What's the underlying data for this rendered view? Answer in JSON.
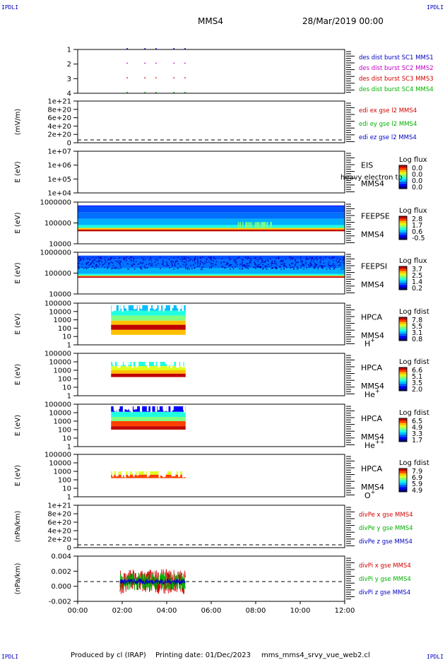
{
  "corner_labels": [
    "IPDLI",
    "IPDLI",
    "IPDLI",
    "IPDLI"
  ],
  "header": {
    "spacecraft": "MMS4",
    "date_time": "28/Mar/2019 00:00"
  },
  "footer": {
    "producer": "Produced by cl (IRAP)",
    "printing_date": "Printing date: 01/Dec/2023",
    "filename": "mms_mms4_srvy_vue_web2.cl"
  },
  "colors": {
    "red": "#d00000",
    "green": "#00b000",
    "blue": "#0000c0",
    "magenta": "#c000c0",
    "black": "#000000"
  },
  "chart_data": [
    {
      "type": "scatter",
      "name": "burst",
      "y_ticks": [
        "1",
        "2",
        "3",
        "4"
      ],
      "series": [
        {
          "name": "des dist burst SC1 MMS1",
          "color": "#0000c0",
          "level": 4
        },
        {
          "name": "des dist burst SC2 MMS2",
          "color": "#c000c0",
          "level": 3
        },
        {
          "name": "des dist burst SC3 MMS3",
          "color": "#d00000",
          "level": 2
        },
        {
          "name": "des dist burst SC4 MMS4",
          "color": "#00b000",
          "level": 1
        }
      ],
      "burst_times_h": [
        2.2,
        3.0,
        3.5,
        4.3,
        4.8
      ]
    },
    {
      "type": "line",
      "name": "edi",
      "ylabel": "(mV/m)",
      "y_ticks": [
        "1e+21",
        "8e+20",
        "6e+20",
        "4e+20",
        "2e+20",
        "0"
      ],
      "series": [
        {
          "name": "edi ex gse l2 MMS4",
          "color": "#d00000"
        },
        {
          "name": "edi ey gse l2 MMS4",
          "color": "#00b000"
        },
        {
          "name": "edi ez gse l2 MMS4",
          "color": "#0000c0"
        }
      ],
      "zero_line": true
    },
    {
      "type": "heatmap",
      "name": "eis",
      "ylabel": "E (eV)",
      "y_ticks": [
        "1e+07",
        "1e+06",
        "1e+05",
        "1e+04"
      ],
      "instrument": "EIS",
      "sc": "MMS4",
      "species": "",
      "overlap_note": "heavy electron to",
      "colorbar": {
        "title": "Log flux",
        "ticks": [
          "0.0",
          "0.0",
          "0.0",
          "0.0"
        ]
      }
    },
    {
      "type": "heatmap",
      "name": "feepse",
      "ylabel": "E (eV)",
      "y_ticks": [
        "1000000",
        "100000",
        "10000"
      ],
      "instrument": "FEEPSE",
      "sc": "MMS4",
      "species": "",
      "colorbar": {
        "title": "Log flux",
        "ticks": [
          "2.8",
          "1.7",
          "0.6",
          "-0.5"
        ]
      }
    },
    {
      "type": "heatmap",
      "name": "feepsi",
      "ylabel": "E (eV)",
      "y_ticks": [
        "1000000",
        "100000",
        "10000"
      ],
      "instrument": "FEEPSI",
      "sc": "MMS4",
      "species": "",
      "colorbar": {
        "title": "Log flux",
        "ticks": [
          "3.7",
          "2.5",
          "1.4",
          "0.2"
        ]
      }
    },
    {
      "type": "heatmap",
      "name": "hpca_h",
      "ylabel": "E (eV)",
      "y_ticks": [
        "100000",
        "10000",
        "1000",
        "100",
        "10",
        "1"
      ],
      "instrument": "HPCA",
      "sc": "MMS4",
      "species": "H",
      "charge": "+",
      "colorbar": {
        "title": "Log fdist",
        "ticks": [
          "7.8",
          "5.5",
          "3.1",
          "0.8"
        ]
      },
      "data_range_h": [
        1.5,
        4.85
      ]
    },
    {
      "type": "heatmap",
      "name": "hpca_he1",
      "ylabel": "E (eV)",
      "y_ticks": [
        "100000",
        "10000",
        "1000",
        "100",
        "10",
        "1"
      ],
      "instrument": "HPCA",
      "sc": "MMS4",
      "species": "He",
      "charge": "+",
      "colorbar": {
        "title": "Log fdist",
        "ticks": [
          "6.6",
          "5.1",
          "3.5",
          "2.0"
        ]
      },
      "data_range_h": [
        1.5,
        4.85
      ]
    },
    {
      "type": "heatmap",
      "name": "hpca_he2",
      "ylabel": "E (eV)",
      "y_ticks": [
        "100000",
        "10000",
        "1000",
        "100",
        "10",
        "1"
      ],
      "instrument": "HPCA",
      "sc": "MMS4",
      "species": "He",
      "charge": "++",
      "colorbar": {
        "title": "Log fdist",
        "ticks": [
          "6.5",
          "4.9",
          "3.3",
          "1.7"
        ]
      },
      "data_range_h": [
        1.5,
        4.85
      ]
    },
    {
      "type": "heatmap",
      "name": "hpca_o",
      "ylabel": "E (eV)",
      "y_ticks": [
        "100000",
        "10000",
        "1000",
        "100",
        "10",
        "1"
      ],
      "instrument": "HPCA",
      "sc": "MMS4",
      "species": "O",
      "charge": "+",
      "colorbar": {
        "title": "Log fdist",
        "ticks": [
          "7.9",
          "6.9",
          "5.9",
          "4.9"
        ]
      },
      "data_range_h": [
        1.5,
        4.85
      ]
    },
    {
      "type": "line",
      "name": "divpe",
      "ylabel": "(nPa/km)",
      "y_ticks": [
        "1e+21",
        "8e+20",
        "6e+20",
        "4e+20",
        "2e+20",
        "0"
      ],
      "series": [
        {
          "name": "divPe x gse MMS4",
          "color": "#d00000"
        },
        {
          "name": "divPe y gse MMS4",
          "color": "#00b000"
        },
        {
          "name": "divPe z gse MMS4",
          "color": "#0000c0"
        }
      ],
      "zero_line": true
    },
    {
      "type": "line",
      "name": "divpi",
      "ylabel": "(nPa/km)",
      "y_ticks": [
        "0.004",
        "0.002",
        "0.000",
        "-0.002"
      ],
      "ylim": [
        -0.0035,
        0.0045
      ],
      "series": [
        {
          "name": "divPi x gse MMS4",
          "color": "#d00000",
          "amplitude": 0.0022
        },
        {
          "name": "divPi y gse MMS4",
          "color": "#00b000",
          "amplitude": 0.0016
        },
        {
          "name": "divPi z gse MMS4",
          "color": "#0000c0",
          "amplitude": 0.0005
        }
      ],
      "data_range_h": [
        1.9,
        4.85
      ],
      "zero_line": true
    }
  ],
  "x_axis": {
    "ticks": [
      "00:00",
      "02:00",
      "04:00",
      "06:00",
      "08:00",
      "10:00",
      "12:00"
    ],
    "range_h": [
      0,
      12
    ]
  }
}
